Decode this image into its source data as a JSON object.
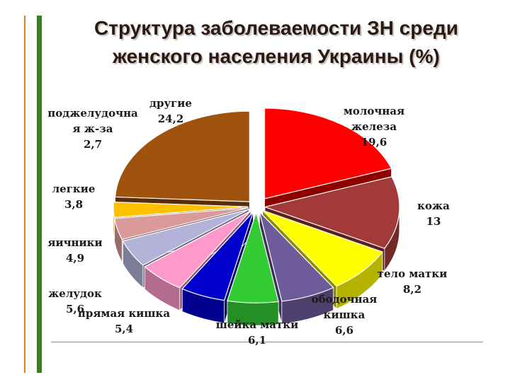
{
  "title": {
    "line1": "Структура заболеваемости ЗН среди",
    "line2": "женского населения Украины (%)"
  },
  "chart_data": {
    "type": "pie",
    "style": "3d-exploded",
    "title": "Структура заболеваемости ЗН среди женского населения Украины (%)",
    "slices": [
      {
        "label_lines": [
          "молочная",
          "железа"
        ],
        "value_text": "19,6",
        "value": 19.6,
        "color": "#ff0000"
      },
      {
        "label_lines": [
          "кожа"
        ],
        "value_text": "13",
        "value": 13,
        "color": "#a33a3a"
      },
      {
        "label_lines": [
          "тело матки"
        ],
        "value_text": "8,2",
        "value": 8.2,
        "color": "#ffff00"
      },
      {
        "label_lines": [
          "ободочная",
          "кишка"
        ],
        "value_text": "6,6",
        "value": 6.6,
        "color": "#6e5b9a"
      },
      {
        "label_lines": [
          "шейка матки"
        ],
        "value_text": "6,1",
        "value": 6.1,
        "color": "#33cc33"
      },
      {
        "label_lines": [
          "прямая кишка"
        ],
        "value_text": "5,4",
        "value": 5.4,
        "color": "#0000cc"
      },
      {
        "label_lines": [
          "желудок"
        ],
        "value_text": "5,6",
        "value": 5.6,
        "color": "#ff99cc"
      },
      {
        "label_lines": [
          "яичники"
        ],
        "value_text": "4,9",
        "value": 4.9,
        "color": "#b3b3d9"
      },
      {
        "label_lines": [
          "легкие"
        ],
        "value_text": "3,8",
        "value": 3.8,
        "color": "#d99a99"
      },
      {
        "label_lines": [
          "поджелудочна",
          "я ж-за"
        ],
        "value_text": "2,7",
        "value": 2.7,
        "color": "#ffc000"
      },
      {
        "label_lines": [
          "другие"
        ],
        "value_text": "24,2",
        "value": 24.2,
        "color": "#a0520f"
      }
    ]
  }
}
